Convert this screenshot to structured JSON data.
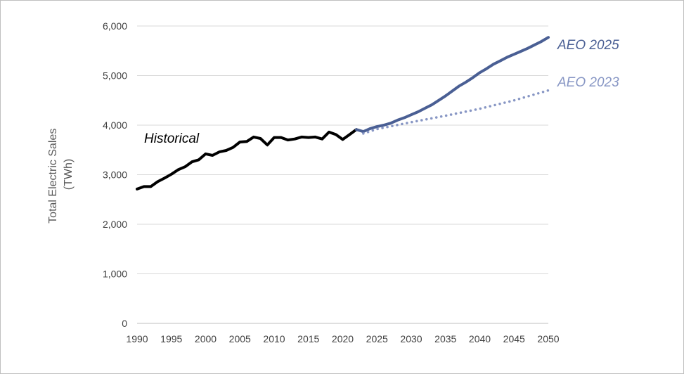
{
  "chart_data": {
    "type": "line",
    "title": "",
    "xlabel": "",
    "ylabel": "Total Electric Sales\n(TWh)",
    "ylabel_lines": [
      "Total Electric Sales",
      "(TWh)"
    ],
    "xlim": [
      1990,
      2050
    ],
    "ylim": [
      0,
      6000
    ],
    "x_ticks": [
      "1990",
      "1995",
      "2000",
      "2005",
      "2010",
      "2015",
      "2020",
      "2025",
      "2030",
      "2035",
      "2040",
      "2045",
      "2050"
    ],
    "y_ticks": [
      "0",
      "1,000",
      "2,000",
      "3,000",
      "4,000",
      "5,000",
      "6,000"
    ],
    "grid": "horizontal",
    "series": [
      {
        "name": "Historical",
        "color": "#000000",
        "style": "solid",
        "x": [
          1990,
          1991,
          1992,
          1993,
          1994,
          1995,
          1996,
          1997,
          1998,
          1999,
          2000,
          2001,
          2002,
          2003,
          2004,
          2005,
          2006,
          2007,
          2008,
          2009,
          2010,
          2011,
          2012,
          2013,
          2014,
          2015,
          2016,
          2017,
          2018,
          2019,
          2020,
          2021,
          2022
        ],
        "y": [
          2710,
          2760,
          2760,
          2860,
          2930,
          3010,
          3100,
          3160,
          3260,
          3300,
          3420,
          3390,
          3460,
          3490,
          3550,
          3660,
          3670,
          3760,
          3730,
          3600,
          3750,
          3750,
          3700,
          3720,
          3760,
          3750,
          3760,
          3720,
          3860,
          3810,
          3710,
          3810,
          3910
        ]
      },
      {
        "name": "AEO 2025",
        "color": "#4a5f94",
        "style": "solid",
        "x": [
          2022,
          2023,
          2024,
          2025,
          2026,
          2027,
          2028,
          2029,
          2030,
          2031,
          2032,
          2033,
          2034,
          2035,
          2036,
          2037,
          2038,
          2039,
          2040,
          2041,
          2042,
          2043,
          2044,
          2045,
          2046,
          2047,
          2048,
          2049,
          2050
        ],
        "y": [
          3910,
          3870,
          3930,
          3970,
          4000,
          4040,
          4100,
          4150,
          4210,
          4270,
          4340,
          4410,
          4500,
          4590,
          4690,
          4790,
          4870,
          4960,
          5060,
          5140,
          5230,
          5300,
          5370,
          5430,
          5490,
          5550,
          5620,
          5690,
          5770
        ]
      },
      {
        "name": "AEO 2023",
        "color": "#8796c4",
        "style": "dotted",
        "x": [
          2023,
          2025,
          2030,
          2035,
          2040,
          2045,
          2050
        ],
        "y": [
          3830,
          3920,
          4060,
          4190,
          4330,
          4500,
          4700
        ]
      }
    ],
    "annotations": [
      {
        "text": "Historical",
        "series": "Historical",
        "color": "#000000"
      },
      {
        "text": "AEO 2025",
        "series": "AEO 2025",
        "color": "#4a5f94"
      },
      {
        "text": "AEO 2023",
        "series": "AEO 2023",
        "color": "#8796c4"
      }
    ]
  }
}
